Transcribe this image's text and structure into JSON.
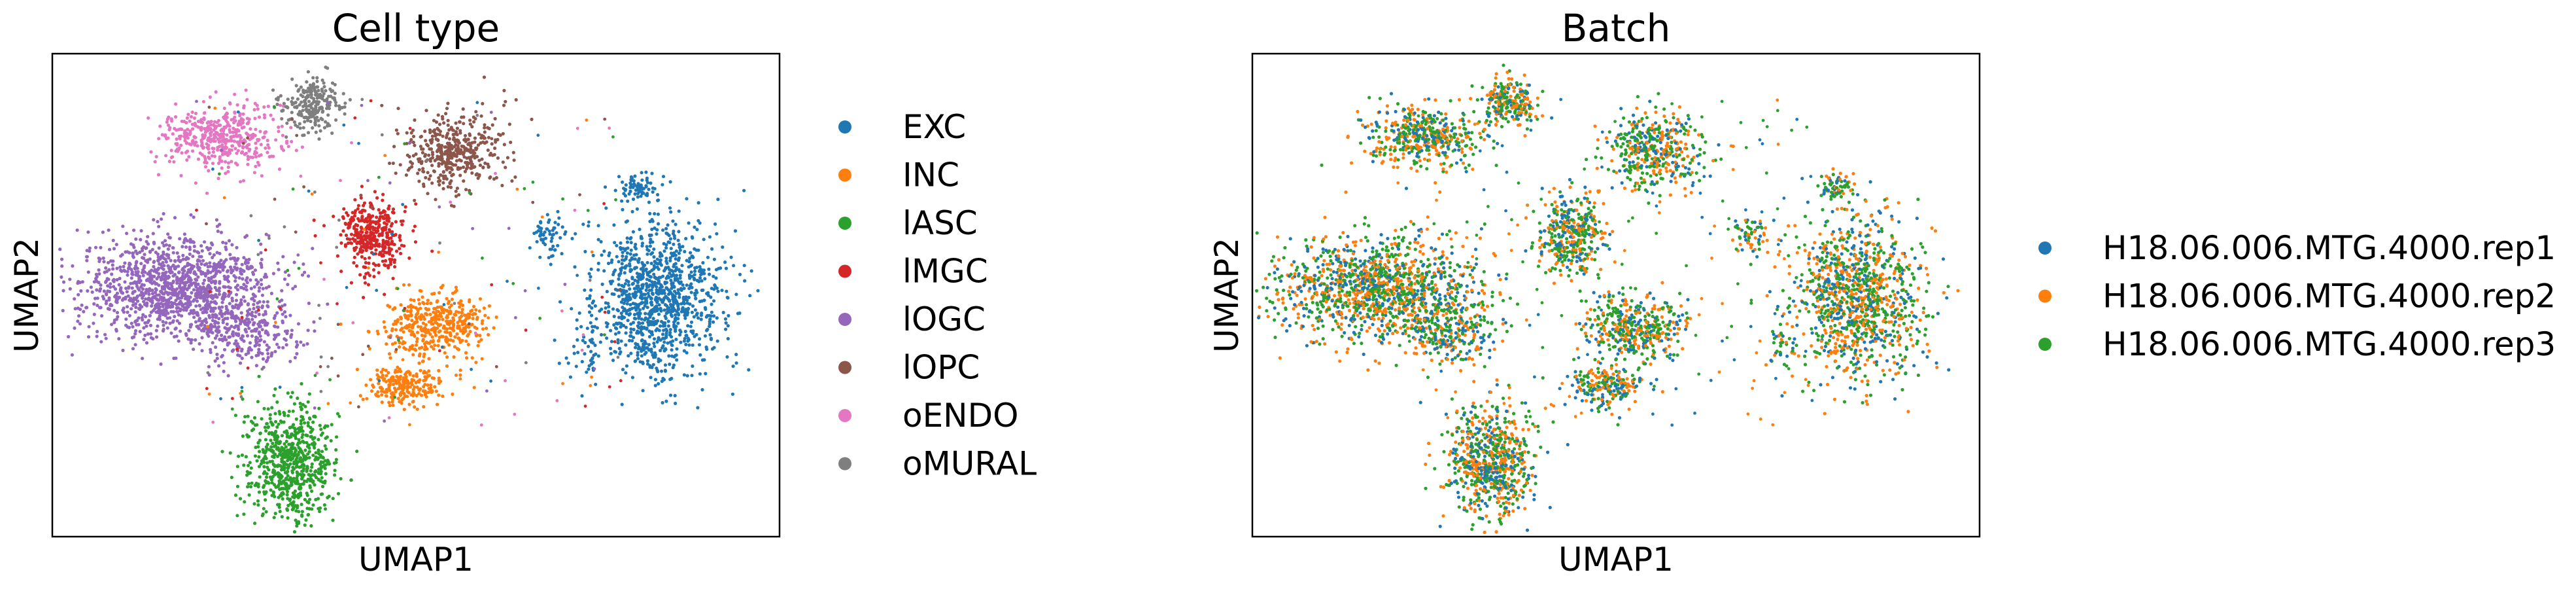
{
  "chart_data": [
    {
      "type": "scatter",
      "title": "Cell type",
      "xlabel": "UMAP1",
      "ylabel": "UMAP2",
      "grid": false,
      "ticks": false,
      "legend_placement": "right",
      "series": [
        {
          "name": "EXC",
          "color": "#1f77b4"
        },
        {
          "name": "INC",
          "color": "#ff7f0e"
        },
        {
          "name": "lASC",
          "color": "#2ca02c"
        },
        {
          "name": "lMGC",
          "color": "#d62728"
        },
        {
          "name": "lOGC",
          "color": "#9467bd"
        },
        {
          "name": "lOPC",
          "color": "#8c564b"
        },
        {
          "name": "oENDO",
          "color": "#e377c2"
        },
        {
          "name": "oMURAL",
          "color": "#7f7f7f"
        }
      ]
    },
    {
      "type": "scatter",
      "title": "Batch",
      "xlabel": "UMAP1",
      "ylabel": "UMAP2",
      "grid": false,
      "ticks": false,
      "legend_placement": "right",
      "series": [
        {
          "name": "H18.06.006.MTG.4000.rep1",
          "color": "#1f77b4"
        },
        {
          "name": "H18.06.006.MTG.4000.rep2",
          "color": "#ff7f0e"
        },
        {
          "name": "H18.06.006.MTG.4000.rep3",
          "color": "#2ca02c"
        }
      ]
    }
  ]
}
